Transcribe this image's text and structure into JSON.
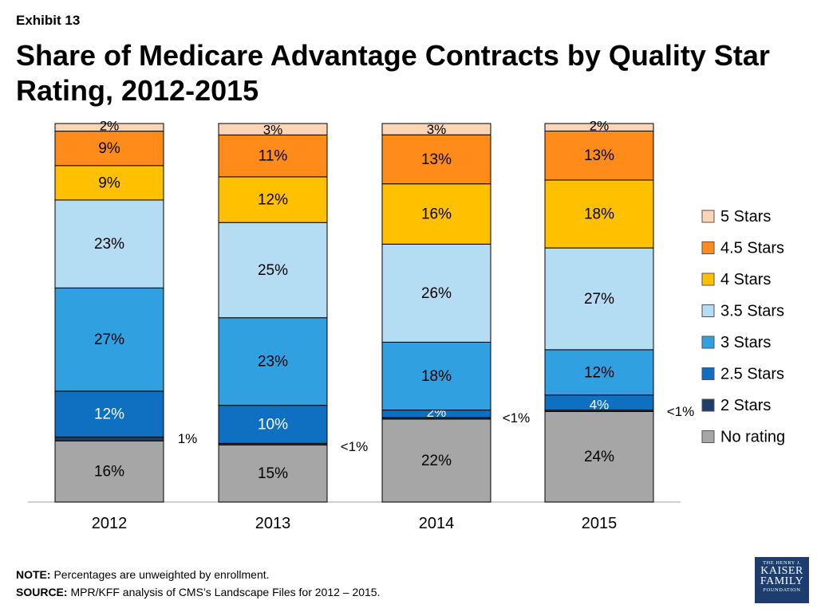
{
  "exhibit_label": "Exhibit 13",
  "title": "Share of Medicare Advantage Contracts by Quality Star Rating, 2012-2015",
  "note": {
    "label": "NOTE:",
    "text": " Percentages are unweighted by enrollment."
  },
  "source": {
    "label": "SOURCE:",
    "text": "  MPR/KFF analysis of CMS’s Landscape Files for 2012 – 2015."
  },
  "logo": {
    "line1": "THE HENRY J.",
    "line2": "KAISER",
    "line3": "FAMILY",
    "line4": "FOUNDATION"
  },
  "chart_data": {
    "type": "bar",
    "stacked": true,
    "categories": [
      "2012",
      "2013",
      "2014",
      "2015"
    ],
    "ylim": [
      0,
      100
    ],
    "grid": false,
    "legend_position": "right",
    "series": [
      {
        "name": "No rating",
        "color": "#a6a6a6",
        "values": [
          16,
          15,
          22,
          24
        ],
        "labels": [
          "16%",
          "15%",
          "22%",
          "24%"
        ]
      },
      {
        "name": "2 Stars",
        "color": "#1f3d6b",
        "values": [
          1,
          0.4,
          0.4,
          0.4
        ],
        "labels": [
          "1%",
          "<1%",
          "<1%",
          "<1%"
        ]
      },
      {
        "name": "2.5 Stars",
        "color": "#0f6fc0",
        "values": [
          12,
          10,
          2,
          4
        ],
        "labels": [
          "12%",
          "10%",
          "2%",
          "4%"
        ]
      },
      {
        "name": "3 Stars",
        "color": "#30a0e0",
        "values": [
          27,
          23,
          18,
          12
        ],
        "labels": [
          "27%",
          "23%",
          "18%",
          "12%"
        ]
      },
      {
        "name": "3.5 Stars",
        "color": "#b4dcf2",
        "values": [
          23,
          25,
          26,
          27
        ],
        "labels": [
          "23%",
          "25%",
          "26%",
          "27%"
        ]
      },
      {
        "name": "4 Stars",
        "color": "#ffc000",
        "values": [
          9,
          12,
          16,
          18
        ],
        "labels": [
          "9%",
          "12%",
          "16%",
          "18%"
        ]
      },
      {
        "name": "4.5 Stars",
        "color": "#ff8c1a",
        "values": [
          9,
          11,
          13,
          13
        ],
        "labels": [
          "9%",
          "11%",
          "13%",
          "13%"
        ]
      },
      {
        "name": "5 Stars",
        "color": "#fcd5b5",
        "values": [
          2,
          3,
          3,
          2
        ],
        "labels": [
          "2%",
          "3%",
          "3%",
          "2%"
        ]
      }
    ]
  }
}
